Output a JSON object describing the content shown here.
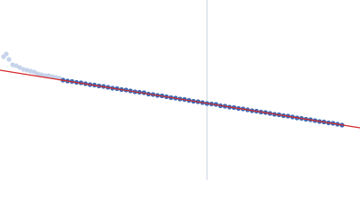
{
  "chart_data": {
    "type": "scatter",
    "xlim": [
      0,
      400
    ],
    "ylim": [
      0,
      200
    ],
    "marker_x": 230,
    "marker_color": "#c8d0e0",
    "fit": {
      "x": [
        0,
        400
      ],
      "y": [
        122,
        58
      ],
      "color": "#d62728"
    },
    "series": [
      {
        "color": "#c5d3ea",
        "x": [
          4,
          7,
          10,
          14,
          18,
          22,
          26,
          30,
          34,
          38,
          42,
          46,
          50,
          54,
          58,
          62,
          66
        ],
        "values": [
          137,
          140,
          134,
          128,
          127,
          125,
          123,
          122,
          121,
          120,
          118,
          117,
          116,
          116,
          115,
          114,
          113
        ]
      },
      {
        "color": "#3d6bb5",
        "x": [
          70,
          75,
          80,
          85,
          90,
          95,
          100,
          105,
          110,
          115,
          120,
          125,
          130,
          135,
          140,
          145,
          150,
          155,
          160,
          165,
          170,
          175,
          180,
          185,
          190,
          195,
          200,
          205,
          210,
          215,
          220,
          225,
          230,
          235,
          240,
          245,
          250,
          255,
          260,
          265,
          270,
          275,
          280,
          285,
          290,
          295,
          300,
          305,
          310,
          315,
          320,
          325,
          330,
          335,
          340,
          345,
          350,
          355,
          360,
          365,
          370,
          375,
          380
        ],
        "values": [
          111,
          110,
          109.5,
          108.5,
          108,
          107,
          106,
          105.5,
          104.5,
          104,
          103,
          102,
          101.5,
          100.5,
          100,
          99,
          98,
          97.5,
          97,
          95.5,
          95,
          94,
          93.5,
          92.5,
          91.5,
          91,
          90,
          89.5,
          88.5,
          87.5,
          87,
          86,
          85,
          84.5,
          84,
          82.5,
          82,
          81,
          80.5,
          79.5,
          79,
          78,
          77,
          76.5,
          75.5,
          75,
          74,
          73,
          72.5,
          71.5,
          71,
          70,
          69,
          68.5,
          67.5,
          67,
          66,
          65,
          64.5,
          63.5,
          63,
          62,
          61
        ]
      }
    ]
  }
}
